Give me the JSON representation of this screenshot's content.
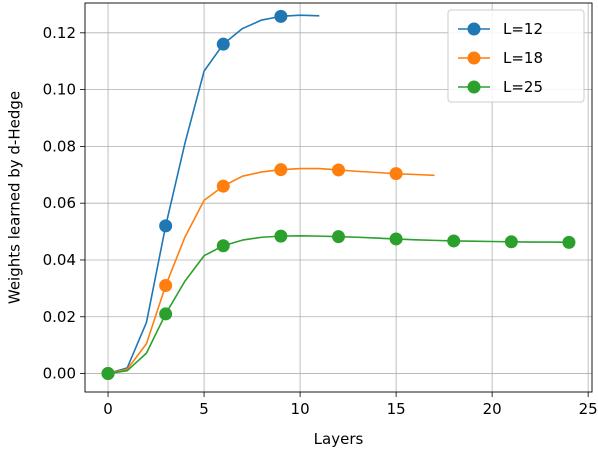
{
  "chart_data": {
    "type": "line",
    "title": "",
    "xlabel": "Layers",
    "ylabel": "Weights learned by d-Hedge",
    "xlim": [
      -1.2,
      25.2
    ],
    "ylim": [
      -0.0065,
      0.1305
    ],
    "xticks": [
      0,
      5,
      10,
      15,
      20,
      25
    ],
    "yticks": [
      0.0,
      0.02,
      0.04,
      0.06,
      0.08,
      0.1,
      0.12
    ],
    "xtick_labels": [
      "0",
      "5",
      "10",
      "15",
      "20",
      "25"
    ],
    "ytick_labels": [
      "0.00",
      "0.02",
      "0.04",
      "0.06",
      "0.08",
      "0.10",
      "0.12"
    ],
    "grid": true,
    "legend_position": "top-right",
    "series": [
      {
        "name": "L=12",
        "color": "#1f77b4",
        "x": [
          0,
          1,
          2,
          3,
          4,
          5,
          6,
          7,
          8,
          9,
          10,
          11
        ],
        "y": [
          0.0,
          0.002,
          0.018,
          0.052,
          0.081,
          0.1065,
          0.116,
          0.1215,
          0.1245,
          0.1258,
          0.1262,
          0.126
        ],
        "marker_x": [
          0,
          3,
          6,
          9
        ]
      },
      {
        "name": "L=18",
        "color": "#ff7f0e",
        "x": [
          0,
          1,
          2,
          3,
          4,
          5,
          6,
          7,
          8,
          9,
          10,
          11,
          12,
          13,
          14,
          15,
          16,
          17
        ],
        "y": [
          0.0,
          0.0015,
          0.0105,
          0.031,
          0.048,
          0.061,
          0.066,
          0.0695,
          0.071,
          0.0718,
          0.0722,
          0.0722,
          0.0717,
          0.0712,
          0.0708,
          0.0704,
          0.0701,
          0.0698
        ],
        "marker_x": [
          0,
          3,
          6,
          9,
          12,
          15
        ]
      },
      {
        "name": "L=25",
        "color": "#2ca02c",
        "x": [
          0,
          1,
          2,
          3,
          4,
          5,
          6,
          7,
          8,
          9,
          10,
          11,
          12,
          13,
          14,
          15,
          16,
          17,
          18,
          19,
          20,
          21,
          22,
          23,
          24
        ],
        "y": [
          0.0,
          0.001,
          0.0072,
          0.021,
          0.0325,
          0.0415,
          0.045,
          0.047,
          0.048,
          0.0484,
          0.0485,
          0.0484,
          0.0482,
          0.048,
          0.0477,
          0.0474,
          0.0471,
          0.0469,
          0.0467,
          0.0466,
          0.0465,
          0.0464,
          0.0463,
          0.0463,
          0.0462
        ],
        "marker_x": [
          0,
          3,
          6,
          9,
          12,
          15,
          18,
          21,
          24
        ]
      }
    ]
  }
}
